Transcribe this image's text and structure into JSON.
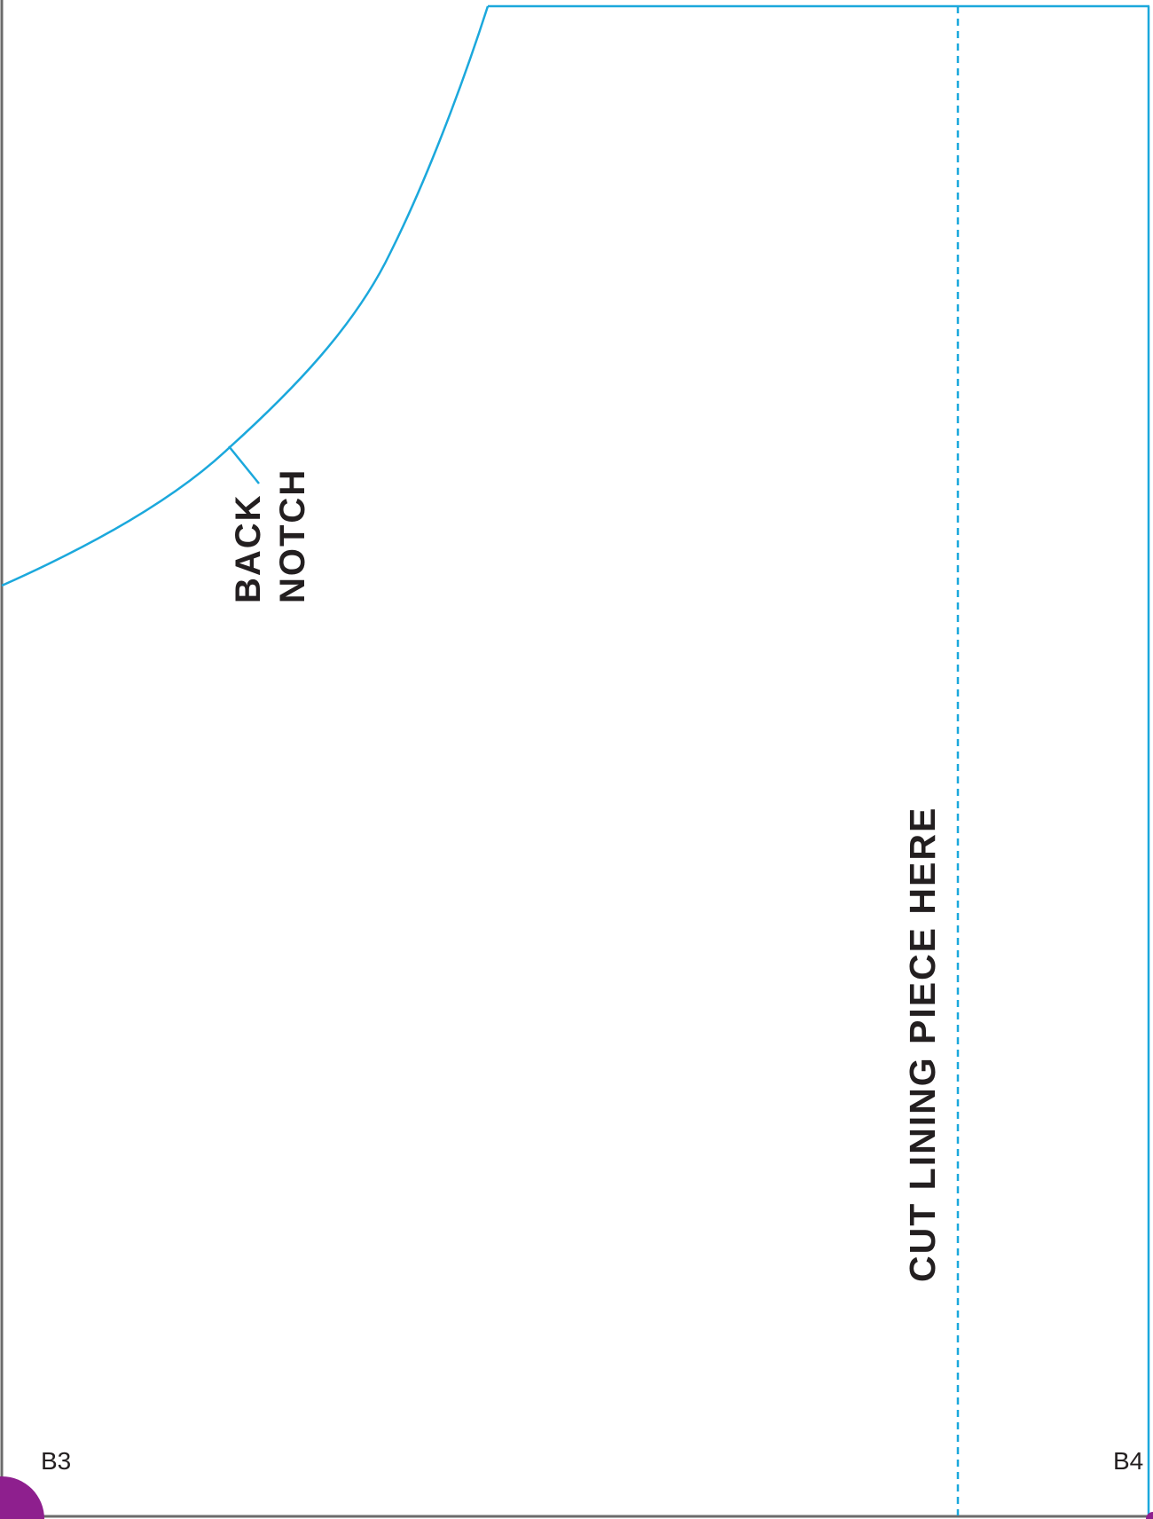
{
  "pattern_page": {
    "back_notch_label": "BACK",
    "back_notch_label_line2": "NOTCH",
    "cut_lining_label": "CUT LINING PIECE HERE",
    "corner_label_left": "B3",
    "corner_label_right": "B4"
  },
  "colors": {
    "pattern_line": "#1ba8dc",
    "border": "#6b6b6b",
    "label_text": "#231f20",
    "corner_marker": "#8e1f8e"
  }
}
